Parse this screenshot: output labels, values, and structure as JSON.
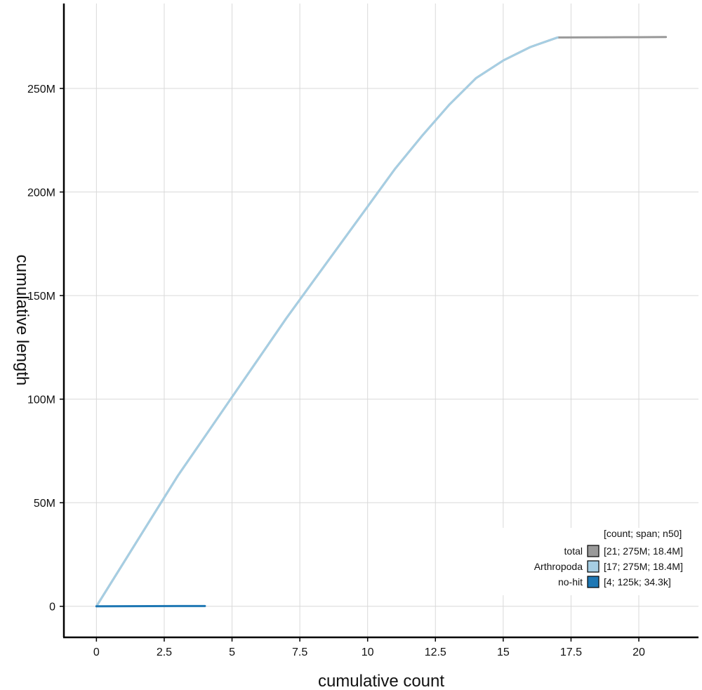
{
  "chart_data": {
    "type": "line",
    "title": "",
    "xlabel": "cumulative count",
    "ylabel": "cumulative length",
    "xlim": [
      -1.2,
      22.2
    ],
    "ylim": [
      -15000000,
      291000000
    ],
    "xticks": [
      0,
      2.5,
      5,
      7.5,
      10,
      12.5,
      15,
      17.5,
      20
    ],
    "xtick_labels": [
      "0",
      "2.5",
      "5",
      "7.5",
      "10",
      "12.5",
      "15",
      "17.5",
      "20"
    ],
    "yticks": [
      0,
      50000000,
      100000000,
      150000000,
      200000000,
      250000000
    ],
    "ytick_labels": [
      "0",
      "50M",
      "100M",
      "150M",
      "200M",
      "250M"
    ],
    "grid": true,
    "legend_position": "bottom-right",
    "legend_header": "[count; span; n50]",
    "series": [
      {
        "name": "total",
        "stats": "[21; 275M; 18.4M]",
        "color": "#999999",
        "x": [
          0,
          1,
          2,
          3,
          4,
          5,
          6,
          7,
          8,
          9,
          10,
          11,
          12,
          13,
          14,
          15,
          16,
          17,
          18,
          19,
          20,
          21
        ],
        "y": [
          0,
          21000000,
          42000000,
          63000000,
          82000000,
          101000000,
          120000000,
          139000000,
          157000000,
          175000000,
          193000000,
          211000000,
          227000000,
          242000000,
          255000000,
          263500000,
          270000000,
          274600000,
          274650000,
          274700000,
          274750000,
          274800000
        ]
      },
      {
        "name": "Arthropoda",
        "stats": "[17; 275M; 18.4M]",
        "color": "#a6cee3",
        "x": [
          0,
          1,
          2,
          3,
          4,
          5,
          6,
          7,
          8,
          9,
          10,
          11,
          12,
          13,
          14,
          15,
          16,
          17
        ],
        "y": [
          0,
          21000000,
          42000000,
          63000000,
          82000000,
          101000000,
          120000000,
          139000000,
          157000000,
          175000000,
          193000000,
          211000000,
          227000000,
          242000000,
          255000000,
          263500000,
          270000000,
          274600000
        ]
      },
      {
        "name": "no-hit",
        "stats": "[4; 125k; 34.3k]",
        "color": "#1f78b4",
        "x": [
          0,
          1,
          2,
          3,
          4
        ],
        "y": [
          0,
          34300,
          66000,
          97000,
          125000
        ]
      }
    ]
  }
}
